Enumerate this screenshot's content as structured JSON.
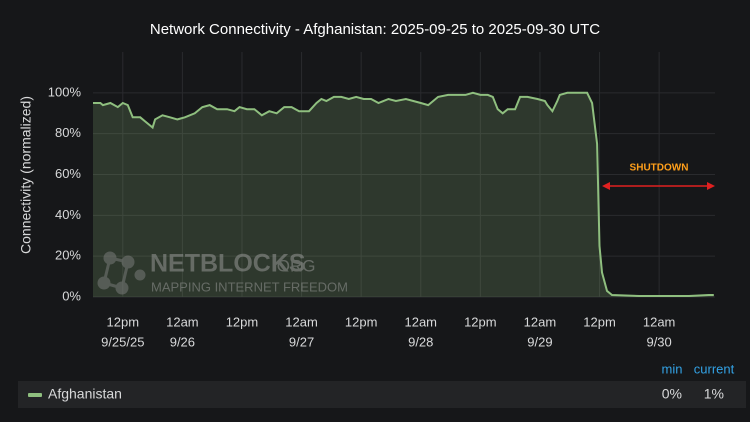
{
  "chart_data": {
    "type": "area",
    "title": "Network Connectivity - Afghanistan: 2025-09-25 to 2025-09-30 UTC",
    "y_label": "Connectivity (normalized)",
    "annotation": "SHUTDOWN",
    "watermark": {
      "name": "NETBLOCKS",
      "suffix": ".ORG",
      "tagline": "MAPPING INTERNET FREEDOM"
    },
    "xlim": [
      "2025-09-25 06:00",
      "2025-09-30 11:15"
    ],
    "xticks": [
      {
        "value": "2025-09-25 12:00",
        "label": "12pm",
        "date": "9/25/25"
      },
      {
        "value": "2025-09-26 00:00",
        "label": "12am",
        "date": "9/26"
      },
      {
        "value": "2025-09-26 12:00",
        "label": "12pm"
      },
      {
        "value": "2025-09-27 00:00",
        "label": "12am",
        "date": "9/27"
      },
      {
        "value": "2025-09-27 12:00",
        "label": "12pm"
      },
      {
        "value": "2025-09-28 00:00",
        "label": "12am",
        "date": "9/28"
      },
      {
        "value": "2025-09-28 12:00",
        "label": "12pm"
      },
      {
        "value": "2025-09-29 00:00",
        "label": "12am",
        "date": "9/29"
      },
      {
        "value": "2025-09-29 12:00",
        "label": "12pm"
      },
      {
        "value": "2025-09-30 00:00",
        "label": "12am",
        "date": "9/30"
      }
    ],
    "ylim": [
      0,
      120
    ],
    "yticks": [
      {
        "value": 0,
        "label": "0%"
      },
      {
        "value": 20,
        "label": "20%"
      },
      {
        "value": 40,
        "label": "40%"
      },
      {
        "value": 60,
        "label": "60%"
      },
      {
        "value": 80,
        "label": "80%"
      },
      {
        "value": 100,
        "label": "100%"
      }
    ],
    "grid": true,
    "series": [
      {
        "name": "Afghanistan",
        "color": "#8fbf7f",
        "x": [
          "2025-09-25 06:00",
          "2025-09-25 07:30",
          "2025-09-25 08:00",
          "2025-09-25 09:30",
          "2025-09-25 11:00",
          "2025-09-25 12:00",
          "2025-09-25 13:00",
          "2025-09-25 14:00",
          "2025-09-25 15:30",
          "2025-09-25 16:30",
          "2025-09-25 18:00",
          "2025-09-25 18:30",
          "2025-09-25 20:00",
          "2025-09-25 21:30",
          "2025-09-25 23:00",
          "2025-09-26 00:30",
          "2025-09-26 02:30",
          "2025-09-26 04:00",
          "2025-09-26 05:30",
          "2025-09-26 07:00",
          "2025-09-26 09:00",
          "2025-09-26 10:30",
          "2025-09-26 11:30",
          "2025-09-26 13:00",
          "2025-09-26 14:30",
          "2025-09-26 16:00",
          "2025-09-26 17:30",
          "2025-09-26 19:00",
          "2025-09-26 20:30",
          "2025-09-26 22:00",
          "2025-09-26 23:30",
          "2025-09-27 01:30",
          "2025-09-27 03:00",
          "2025-09-27 04:00",
          "2025-09-27 05:00",
          "2025-09-27 06:30",
          "2025-09-27 08:00",
          "2025-09-27 09:30",
          "2025-09-27 11:00",
          "2025-09-27 12:30",
          "2025-09-27 14:00",
          "2025-09-27 15:30",
          "2025-09-27 17:30",
          "2025-09-27 19:00",
          "2025-09-27 21:00",
          "2025-09-27 22:30",
          "2025-09-28 00:00",
          "2025-09-28 01:30",
          "2025-09-28 03:30",
          "2025-09-28 05:30",
          "2025-09-28 07:30",
          "2025-09-28 09:00",
          "2025-09-28 10:30",
          "2025-09-28 12:00",
          "2025-09-28 13:30",
          "2025-09-28 14:30",
          "2025-09-28 15:30",
          "2025-09-28 16:30",
          "2025-09-28 17:30",
          "2025-09-28 19:00",
          "2025-09-28 20:00",
          "2025-09-28 21:30",
          "2025-09-28 23:30",
          "2025-09-29 01:00",
          "2025-09-29 01:30",
          "2025-09-29 02:30",
          "2025-09-29 03:30",
          "2025-09-29 04:00",
          "2025-09-29 05:30",
          "2025-09-29 07:30",
          "2025-09-29 09:30",
          "2025-09-29 10:30",
          "2025-09-29 11:00",
          "2025-09-29 11:30",
          "2025-09-29 12:00",
          "2025-09-29 12:30",
          "2025-09-29 13:30",
          "2025-09-29 14:30",
          "2025-09-29 20:00",
          "2025-09-30 06:00",
          "2025-09-30 10:00",
          "2025-09-30 11:00"
        ],
        "values": [
          95,
          95,
          94,
          95,
          93,
          95,
          94,
          88,
          88,
          86,
          83,
          87,
          89,
          88,
          87,
          88,
          90,
          93,
          94,
          92,
          92,
          91,
          93,
          92,
          92,
          89,
          91,
          90,
          93,
          93,
          91,
          91,
          95,
          97,
          96,
          98,
          98,
          97,
          98,
          97,
          97,
          95,
          97,
          96,
          97,
          96,
          95,
          94,
          98,
          99,
          99,
          99,
          100,
          99,
          99,
          98,
          92,
          90,
          92,
          92,
          98,
          98,
          97,
          96,
          94,
          91,
          96,
          99,
          100,
          100,
          100,
          95,
          85,
          75,
          25,
          12,
          3,
          1,
          0.5,
          0.5,
          1,
          1
        ]
      }
    ],
    "legend_stats": {
      "headers": [
        "min",
        "current"
      ],
      "values": [
        0,
        1
      ],
      "value_labels": [
        "0%",
        "1%"
      ]
    }
  }
}
